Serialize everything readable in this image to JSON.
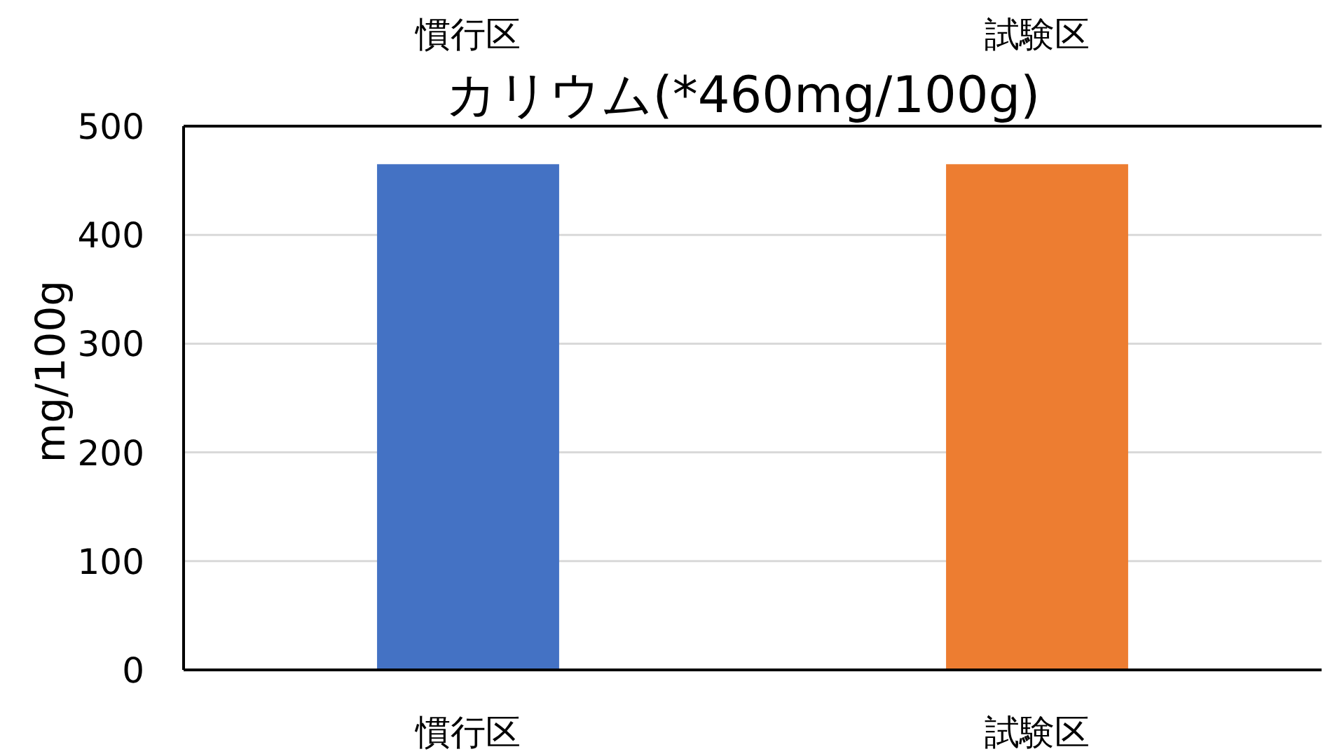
{
  "chart_data": {
    "type": "bar",
    "title": "カリウム(*460mg/100g)",
    "ylabel": "mg/100g",
    "categories": [
      "慣行区",
      "試験区"
    ],
    "values": [
      465,
      465
    ],
    "colors": [
      "#4472c4",
      "#ed7d31"
    ],
    "ylim": [
      0,
      500
    ],
    "yticks": [
      0,
      100,
      200,
      300,
      400,
      500
    ],
    "grid": "y"
  }
}
